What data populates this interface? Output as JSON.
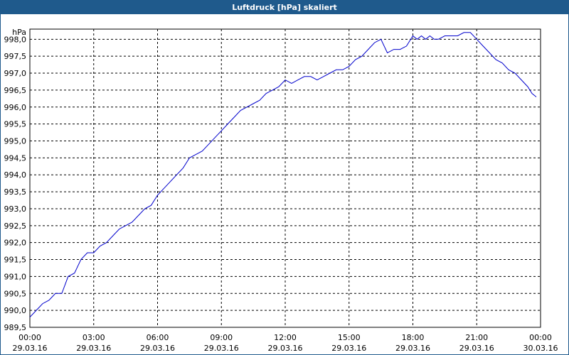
{
  "window": {
    "title": "Luftdruck [hPa] skaliert"
  },
  "chart_data": {
    "type": "line",
    "title": "Luftdruck [hPa] skaliert",
    "unit_label": "hPa",
    "xlabel": "",
    "ylabel": "",
    "ylim": [
      989.5,
      998.3
    ],
    "xlim_hours": [
      0,
      24
    ],
    "grid": true,
    "y_ticks": [
      "998,0",
      "997,5",
      "997,0",
      "996,5",
      "996,0",
      "995,5",
      "995,0",
      "994,5",
      "994,0",
      "993,5",
      "993,0",
      "992,5",
      "992,0",
      "991,5",
      "991,0",
      "990,5",
      "990,0",
      "989,5"
    ],
    "x_ticks": [
      {
        "time": "00:00",
        "date": "29.03.16"
      },
      {
        "time": "03:00",
        "date": "29.03.16"
      },
      {
        "time": "06:00",
        "date": "29.03.16"
      },
      {
        "time": "09:00",
        "date": "29.03.16"
      },
      {
        "time": "12:00",
        "date": "29.03.16"
      },
      {
        "time": "15:00",
        "date": "29.03.16"
      },
      {
        "time": "18:00",
        "date": "29.03.16"
      },
      {
        "time": "21:00",
        "date": "29.03.16"
      },
      {
        "time": "00:00",
        "date": "30.03.16"
      }
    ],
    "series": [
      {
        "line_color": "#0000cc",
        "x_hours": [
          0.0,
          0.3,
          0.6,
          0.9,
          1.2,
          1.5,
          1.8,
          2.1,
          2.4,
          2.7,
          3.0,
          3.3,
          3.6,
          3.9,
          4.2,
          4.5,
          4.8,
          5.1,
          5.4,
          5.7,
          6.0,
          6.3,
          6.6,
          6.9,
          7.2,
          7.5,
          7.8,
          8.1,
          8.4,
          8.7,
          9.0,
          9.3,
          9.6,
          9.9,
          10.2,
          10.5,
          10.8,
          11.1,
          11.4,
          11.7,
          12.0,
          12.3,
          12.6,
          12.9,
          13.2,
          13.5,
          13.8,
          14.1,
          14.4,
          14.7,
          15.0,
          15.3,
          15.6,
          15.9,
          16.2,
          16.5,
          16.8,
          17.1,
          17.4,
          17.7,
          18.0,
          18.2,
          18.4,
          18.6,
          18.8,
          19.0,
          19.2,
          19.5,
          19.8,
          20.1,
          20.4,
          20.7,
          21.0,
          21.3,
          21.6,
          21.9,
          22.2,
          22.5,
          22.8,
          23.1,
          23.4,
          23.6,
          23.8
        ],
        "values": [
          989.8,
          990.0,
          990.2,
          990.3,
          990.5,
          990.5,
          991.0,
          991.1,
          991.5,
          991.7,
          991.7,
          991.9,
          992.0,
          992.2,
          992.4,
          992.5,
          992.6,
          992.8,
          993.0,
          993.1,
          993.4,
          993.6,
          993.8,
          994.0,
          994.2,
          994.5,
          994.6,
          994.7,
          994.9,
          995.1,
          995.3,
          995.5,
          995.7,
          995.9,
          996.0,
          996.1,
          996.2,
          996.4,
          996.5,
          996.6,
          996.8,
          996.7,
          996.8,
          996.9,
          996.9,
          996.8,
          996.9,
          997.0,
          997.1,
          997.1,
          997.2,
          997.4,
          997.5,
          997.7,
          997.9,
          998.0,
          997.6,
          997.7,
          997.7,
          997.8,
          998.1,
          998.0,
          998.1,
          998.0,
          998.1,
          998.0,
          998.0,
          998.1,
          998.1,
          998.1,
          998.2,
          998.2,
          998.0,
          997.8,
          997.6,
          997.4,
          997.3,
          997.1,
          997.0,
          996.8,
          996.6,
          996.4,
          996.3
        ]
      }
    ]
  }
}
